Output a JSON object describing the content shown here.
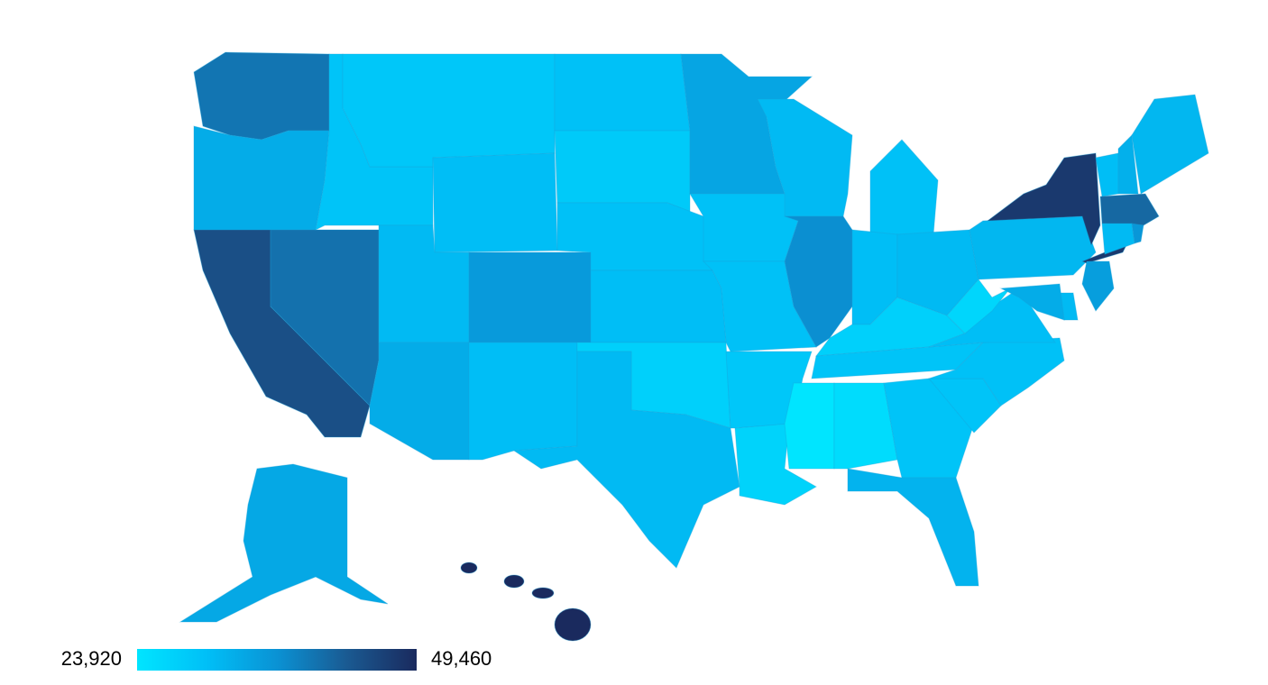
{
  "chart_data": {
    "type": "choropleth",
    "values": [
      40000,
      33000,
      44500,
      40500,
      29500,
      29000,
      30500,
      31000,
      33000,
      35500,
      30500,
      30000,
      28500,
      30000,
      30500,
      27500,
      31000,
      34000,
      30000,
      30000,
      29000,
      27000,
      31000,
      37000,
      30000,
      30500,
      31000,
      27500,
      29500,
      24000,
      25500,
      29500,
      32000,
      29500,
      30000,
      30500,
      26500,
      31500,
      47500,
      30500,
      32500,
      31500,
      41500,
      31000,
      36000,
      35000,
      31000,
      33000,
      33500,
      49460
    ],
    "colorscale": [
      "#00e5ff",
      "#00bff7",
      "#0a92d4",
      "#1a5a92",
      "#1a2a5e"
    ],
    "legend_ticks": [
      {
        "value": 23920,
        "label": "23,920"
      },
      {
        "value": 49460,
        "label": "49,460"
      }
    ]
  }
}
